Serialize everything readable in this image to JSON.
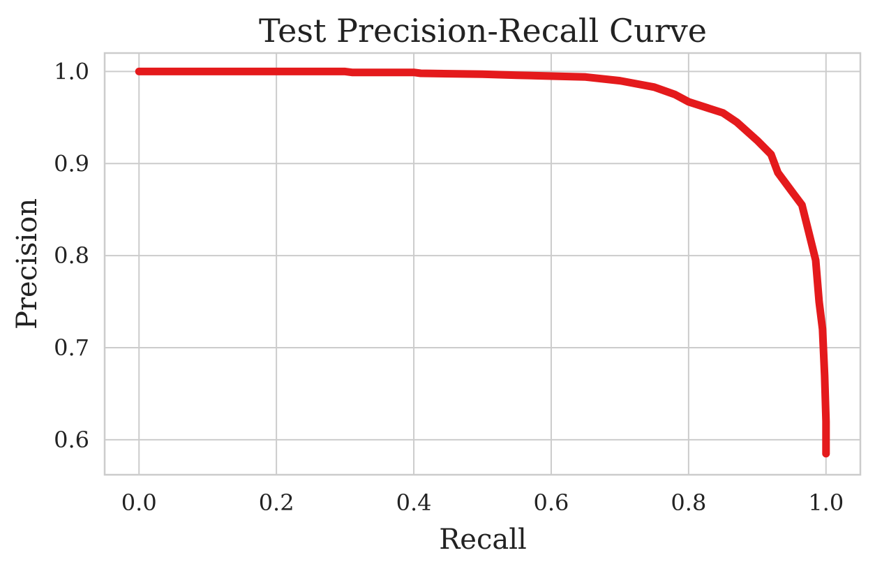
{
  "chart_data": {
    "type": "line",
    "title": "Test Precision-Recall Curve",
    "xlabel": "Recall",
    "ylabel": "Precision",
    "xlim": [
      -0.05,
      1.05
    ],
    "ylim": [
      0.562,
      1.02
    ],
    "xticks": [
      {
        "value": 0.0,
        "label": "0.0"
      },
      {
        "value": 0.2,
        "label": "0.2"
      },
      {
        "value": 0.4,
        "label": "0.4"
      },
      {
        "value": 0.6,
        "label": "0.6"
      },
      {
        "value": 0.8,
        "label": "0.8"
      },
      {
        "value": 1.0,
        "label": "1.0"
      }
    ],
    "yticks": [
      {
        "value": 0.6,
        "label": "0.6"
      },
      {
        "value": 0.7,
        "label": "0.7"
      },
      {
        "value": 0.8,
        "label": "0.8"
      },
      {
        "value": 0.9,
        "label": "0.9"
      },
      {
        "value": 1.0,
        "label": "1.0"
      }
    ],
    "grid": true,
    "series": [
      {
        "color": "#e41a1c",
        "x": [
          0.0,
          0.1,
          0.2,
          0.3,
          0.31,
          0.4,
          0.41,
          0.5,
          0.55,
          0.6,
          0.65,
          0.7,
          0.75,
          0.78,
          0.8,
          0.85,
          0.87,
          0.9,
          0.92,
          0.93,
          0.95,
          0.965,
          0.975,
          0.985,
          0.99,
          0.995,
          0.998,
          1.0,
          1.0
        ],
        "y": [
          1.0,
          1.0,
          1.0,
          1.0,
          0.999,
          0.999,
          0.998,
          0.997,
          0.996,
          0.995,
          0.994,
          0.99,
          0.983,
          0.975,
          0.967,
          0.955,
          0.945,
          0.925,
          0.91,
          0.89,
          0.87,
          0.855,
          0.825,
          0.795,
          0.75,
          0.72,
          0.67,
          0.62,
          0.585
        ]
      }
    ]
  }
}
